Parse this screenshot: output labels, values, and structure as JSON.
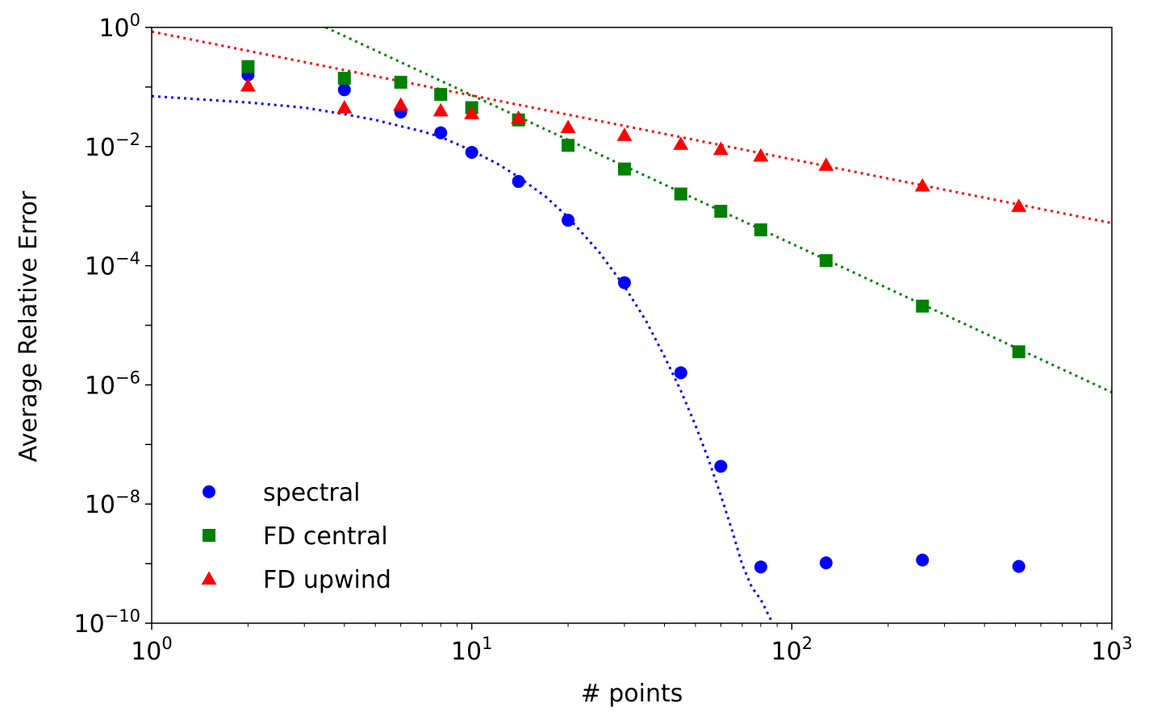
{
  "chart_data": {
    "type": "scatter",
    "xlabel": "# points",
    "ylabel": "Average Relative Error",
    "xscale": "log",
    "yscale": "log",
    "xlim": [
      1,
      1000
    ],
    "ylim": [
      1e-10,
      1
    ],
    "x_ticks": [
      {
        "value": 1,
        "base": "10",
        "exp": "0"
      },
      {
        "value": 10,
        "base": "10",
        "exp": "1"
      },
      {
        "value": 100,
        "base": "10",
        "exp": "2"
      },
      {
        "value": 1000,
        "base": "10",
        "exp": "3"
      }
    ],
    "y_ticks": [
      {
        "value": 1,
        "base": "10",
        "exp": "0"
      },
      {
        "value": 0.01,
        "base": "10",
        "exp": "−2"
      },
      {
        "value": 0.0001,
        "base": "10",
        "exp": "−4"
      },
      {
        "value": 1e-06,
        "base": "10",
        "exp": "−6"
      },
      {
        "value": 1e-08,
        "base": "10",
        "exp": "−8"
      },
      {
        "value": 1e-10,
        "base": "10",
        "exp": "−10"
      }
    ],
    "grid": false,
    "legend_position": "lower-left",
    "series": [
      {
        "name": "spectral",
        "marker": "circle",
        "color": "#0000ff",
        "x": [
          2,
          4,
          6,
          8,
          10,
          14,
          20,
          30,
          45,
          60,
          80,
          128,
          256,
          512
        ],
        "y": [
          0.16,
          0.09,
          0.038,
          0.017,
          0.008,
          0.0026,
          0.00058,
          5.2e-05,
          1.6e-06,
          4.3e-08,
          8.8e-10,
          1.03e-09,
          1.15e-09,
          9e-10
        ],
        "fit": {
          "style": "dotted",
          "x": [
            1,
            2,
            3,
            4,
            5,
            6,
            7,
            8,
            9,
            10,
            12,
            14,
            17,
            20,
            25,
            30,
            35,
            40,
            45,
            50,
            55,
            60,
            65,
            70,
            75,
            80,
            85,
            88
          ],
          "y": [
            0.07,
            0.055,
            0.045,
            0.035,
            0.028,
            0.022,
            0.018,
            0.0145,
            0.011,
            0.0085,
            0.0052,
            0.0031,
            0.00145,
            0.00065,
            0.00017,
            4.5e-05,
            1.2e-05,
            3e-06,
            8e-07,
            2.1e-07,
            5.5e-08,
            1.4e-08,
            3.7e-09,
            9.6e-10,
            4e-10,
            2.5e-10,
            1.3e-10,
            9e-11
          ]
        }
      },
      {
        "name": "FD central",
        "marker": "square",
        "color": "#008000",
        "x": [
          2,
          4,
          6,
          8,
          10,
          14,
          20,
          30,
          45,
          60,
          80,
          128,
          256,
          512
        ],
        "y": [
          0.22,
          0.14,
          0.12,
          0.075,
          0.045,
          0.028,
          0.0105,
          0.0042,
          0.0016,
          0.00082,
          0.0004,
          0.000122,
          2.1e-05,
          3.6e-06
        ],
        "fit": {
          "style": "dotted",
          "x": [
            3.5,
            1000
          ],
          "y": [
            1.0,
            7.5e-07
          ]
        }
      },
      {
        "name": "FD upwind",
        "marker": "triangle",
        "color": "#ff0000",
        "x": [
          2,
          4,
          6,
          8,
          10,
          14,
          20,
          30,
          45,
          60,
          80,
          128,
          256,
          512
        ],
        "y": [
          0.105,
          0.045,
          0.05,
          0.04,
          0.036,
          0.03,
          0.021,
          0.0155,
          0.011,
          0.009,
          0.007,
          0.0049,
          0.0022,
          0.001
        ],
        "fit": {
          "style": "dotted",
          "x": [
            1,
            1000
          ],
          "y": [
            0.85,
            0.00052
          ]
        }
      }
    ]
  }
}
